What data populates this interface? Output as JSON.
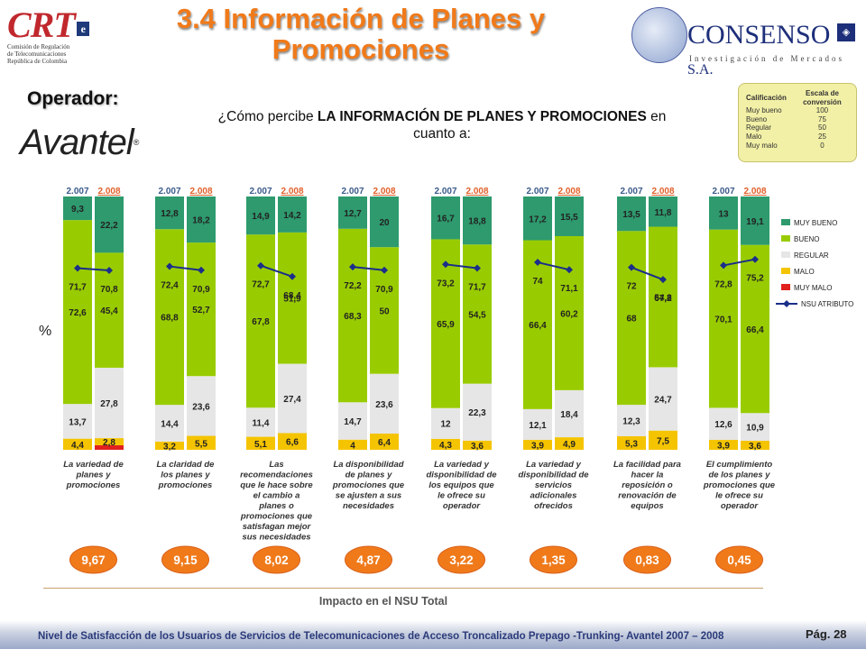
{
  "title": "3.4 Información de Planes y Promociones",
  "crt_logo": {
    "mark": "CRT",
    "sub": [
      "Comisión de Regulación",
      "de Telecomunicaciones",
      "República de Colombia"
    ]
  },
  "consenso_logo": {
    "name": "CONSENSO",
    "suffix": "S.A.",
    "tagline": "Investigación de Mercados"
  },
  "operador_label": "Operador:",
  "operator_logo": "Avantel",
  "question": {
    "prefix": "¿Cómo percibe ",
    "bold": "LA INFORMACIÓN DE PLANES Y PROMOCIONES",
    "suffix": " en cuanto a:"
  },
  "rating_table": {
    "headers": [
      "Calificación",
      "Escala de conversión"
    ],
    "rows": [
      [
        "Muy bueno",
        "100"
      ],
      [
        "Bueno",
        "75"
      ],
      [
        "Regular",
        "50"
      ],
      [
        "Malo",
        "25"
      ],
      [
        "Muy malo",
        "0"
      ]
    ]
  },
  "percent_label": "%",
  "impact_label": "Impacto en el NSU Total",
  "footer": "Nivel de Satisfacción de los Usuarios de Servicios de Telecomunicaciones de Acceso Troncalizado Prepago -Trunking- Avantel 2007 – 2008",
  "page": "Pág. 28",
  "colors": {
    "muy_bueno": "#2e9a6e",
    "bueno": "#99cc00",
    "regular": "#e6e6e6",
    "malo": "#f5c400",
    "muy_malo": "#e0211e",
    "nsu_line": "#1a2e8a",
    "impact": "#f07a1a"
  },
  "chart_data": {
    "type": "bar",
    "stacked": true,
    "ylabel": "%",
    "ylim": [
      0,
      100
    ],
    "year_labels": [
      "2.007",
      "2.008"
    ],
    "categories": [
      "La variedad de planes y promociones",
      "La claridad de los planes y promociones",
      "Las recomendaciones que le hace sobre el cambio a planes o promociones que satisfagan mejor sus necesidades",
      "La disponibilidad de planes y promociones que se ajusten a sus necesidades",
      "La variedad y disponibilidad de los equipos que le ofrece su operador",
      "La variedad y disponibilidad de servicios adicionales ofrecidos",
      "La facilidad para hacer la reposición o renovación de equipos",
      "El cumplimiento de los planes y promociones que le ofrece su operador"
    ],
    "series": [
      {
        "name": "MUY BUENO",
        "values_2007": [
          9.3,
          12.8,
          14.9,
          12.7,
          16.7,
          17.2,
          13.5,
          13.0
        ],
        "values_2008": [
          22.2,
          18.2,
          14.2,
          20.0,
          18.8,
          15.5,
          11.8,
          19.1
        ]
      },
      {
        "name": "BUENO",
        "values_2007": [
          72.6,
          68.8,
          67.8,
          68.3,
          65.9,
          66.4,
          68.0,
          70.1
        ],
        "values_2008": [
          45.4,
          52.7,
          51.9,
          50.0,
          54.5,
          60.2,
          54.8,
          66.4
        ]
      },
      {
        "name": "REGULAR",
        "values_2007": [
          13.7,
          14.4,
          11.4,
          14.7,
          12.0,
          12.1,
          12.3,
          12.6
        ],
        "values_2008": [
          27.8,
          23.6,
          27.4,
          23.6,
          22.3,
          18.4,
          24.7,
          10.9
        ]
      },
      {
        "name": "MALO",
        "values_2007": [
          4.4,
          3.2,
          5.1,
          4.0,
          4.3,
          3.9,
          5.3,
          3.9
        ],
        "values_2008": [
          2.8,
          5.5,
          6.6,
          6.4,
          3.6,
          4.9,
          7.5,
          3.6
        ]
      },
      {
        "name": "MUY MALO",
        "values_2007": [
          0,
          0,
          0,
          0,
          0,
          0,
          0,
          0
        ],
        "values_2008": [
          1.8,
          0,
          0,
          0,
          0,
          0,
          0,
          0
        ]
      }
    ],
    "nsu_atributo": {
      "name": "NSU ATRIBUTO",
      "values_2007": [
        71.7,
        72.4,
        72.7,
        72.2,
        73.2,
        74.0,
        72.0,
        72.8
      ],
      "values_2008": [
        70.8,
        70.9,
        68.4,
        70.9,
        71.7,
        71.1,
        67.2,
        75.2
      ]
    },
    "impact_values": [
      "9,67",
      "9,15",
      "8,02",
      "4,87",
      "3,22",
      "1,35",
      "0,83",
      "0,45"
    ],
    "legend": [
      "MUY BUENO",
      "BUENO",
      "REGULAR",
      "MALO",
      "MUY MALO",
      "NSU ATRIBUTO"
    ],
    "legend_position": "right"
  }
}
